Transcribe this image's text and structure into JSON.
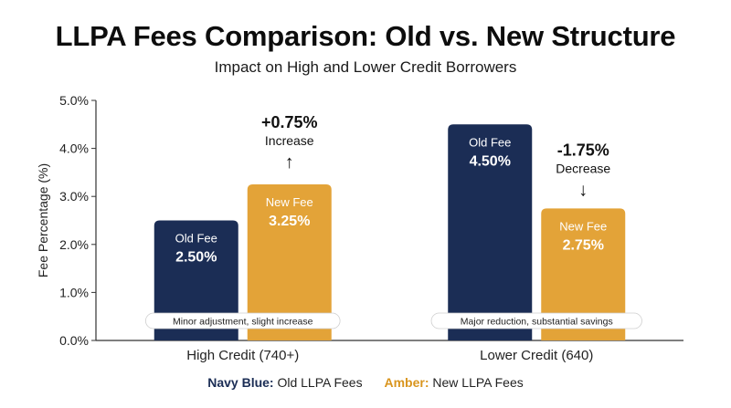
{
  "title": "LLPA Fees Comparison: Old vs. New Structure",
  "subtitle": "Impact on High and Lower Credit Borrowers",
  "colors": {
    "old": "#1b2d55",
    "new": "#e3a338",
    "axis": "#333333"
  },
  "legend": {
    "old_key": "Navy Blue:",
    "old_label": "Old LLPA Fees",
    "new_key": "Amber:",
    "new_label": "New LLPA Fees"
  },
  "chart_data": {
    "type": "bar",
    "ylabel": "Fee Percentage (%)",
    "ylim": [
      0,
      5
    ],
    "yticks": [
      "0.0%",
      "1.0%",
      "2.0%",
      "3.0%",
      "4.0%",
      "5.0%"
    ],
    "categories": [
      "High Credit (740+)",
      "Lower Credit (640)"
    ],
    "series": [
      {
        "name": "Old Fee",
        "values": [
          2.5,
          4.5
        ],
        "labels": [
          "2.50%",
          "4.50%"
        ]
      },
      {
        "name": "New Fee",
        "values": [
          3.25,
          2.75
        ],
        "labels": [
          "3.25%",
          "2.75%"
        ]
      }
    ],
    "changes": [
      {
        "value": "+0.75%",
        "text": "Increase",
        "arrow": "↑"
      },
      {
        "value": "-1.75%",
        "text": "Decrease",
        "arrow": "↓"
      }
    ],
    "notes": [
      "Minor adjustment, slight increase",
      "Major reduction, substantial savings"
    ]
  }
}
